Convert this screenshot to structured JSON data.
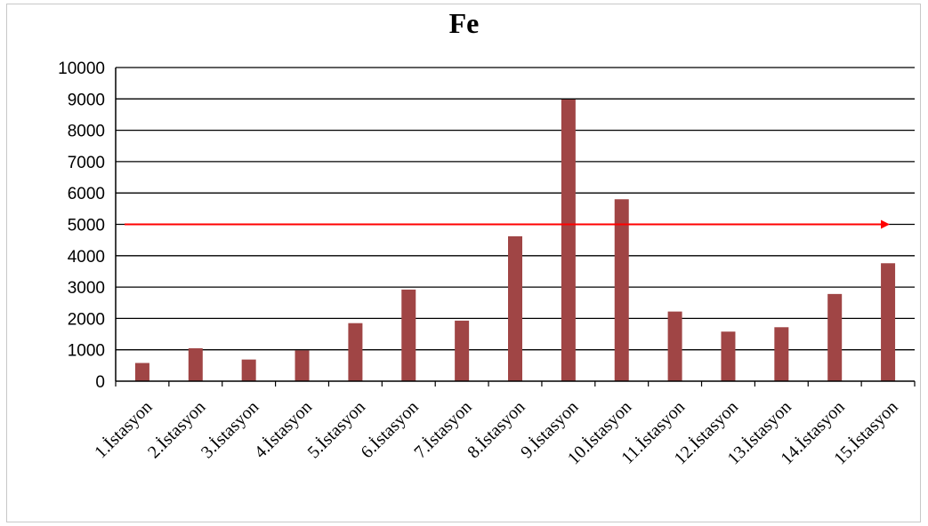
{
  "chart_data": {
    "type": "bar",
    "title": "Fe",
    "xlabel": "",
    "ylabel": "",
    "ylim": [
      0,
      10000
    ],
    "yticks": [
      0,
      1000,
      2000,
      3000,
      4000,
      5000,
      6000,
      7000,
      8000,
      9000,
      10000
    ],
    "categories": [
      "1.İstasyon",
      "2.İstasyon",
      "3.İstasyon",
      "4.İstasyon",
      "5.İstasyon",
      "6.İstasyon",
      "7.İstasyon",
      "8.İstasyon",
      "9.İstasyon",
      "10.İstasyon",
      "11.İstasyon",
      "12.İstasyon",
      "13.İstasyon",
      "14.İstasyon",
      "15.İstasyon"
    ],
    "values": [
      580,
      1050,
      690,
      980,
      1850,
      2920,
      1930,
      4620,
      8980,
      5800,
      2220,
      1580,
      1720,
      2780,
      3760
    ],
    "bar_color": "#a04545",
    "grid": true,
    "reference_line": {
      "value": 5000,
      "color": "#ff0000"
    }
  }
}
